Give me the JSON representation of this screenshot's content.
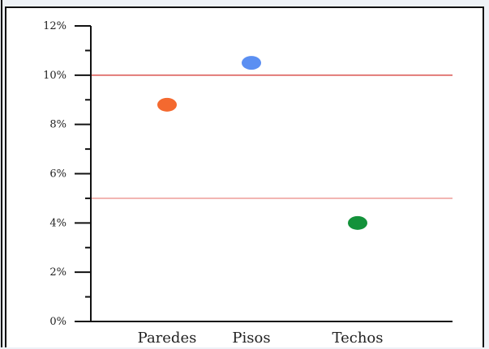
{
  "chart_data": {
    "type": "scatter",
    "categories": [
      "Paredes",
      "Pisos",
      "Techos"
    ],
    "values": [
      8.8,
      10.5,
      4.0
    ],
    "point_colors": [
      "#f4692f",
      "#5b8ff2",
      "#13923a"
    ],
    "y_ticks": [
      "0%",
      "2%",
      "4%",
      "6%",
      "8%",
      "10%",
      "12%"
    ],
    "ylim": [
      0,
      12
    ],
    "reference_lines": [
      {
        "value": 10,
        "color": "#d9534f"
      },
      {
        "value": 5,
        "color": "#ee9b98"
      }
    ],
    "title": "",
    "xlabel": "",
    "ylabel": "",
    "grid": false
  }
}
